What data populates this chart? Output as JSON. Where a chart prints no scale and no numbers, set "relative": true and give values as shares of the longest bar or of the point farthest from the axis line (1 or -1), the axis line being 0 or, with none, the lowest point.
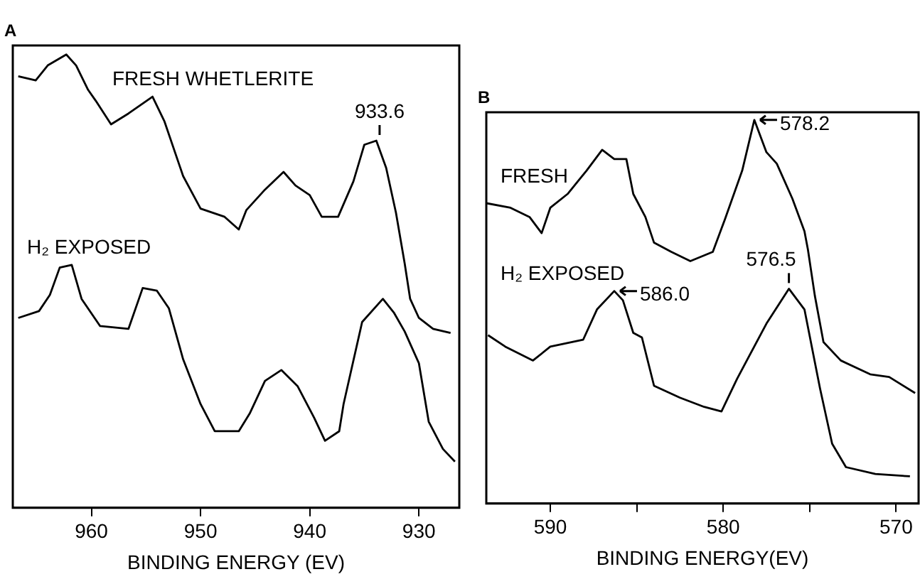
{
  "chart_data": [
    {
      "type": "line",
      "title": "A",
      "xlabel": "BINDING ENERGY (EV)",
      "xlim": [
        967.2,
        926.3
      ],
      "xticks": [
        960,
        950,
        940,
        930
      ],
      "relative": true,
      "grid": false,
      "marker": "none",
      "line_style": "solid",
      "series": [
        {
          "name": "FRESH WHETLERITE",
          "color": "#000000",
          "x": [
            966.7,
            965.1,
            964.0,
            962.3,
            961.4,
            960.3,
            959.6,
            958.2,
            956.6,
            954.4,
            953.3,
            951.6,
            950.0,
            947.8,
            946.5,
            945.8,
            944.1,
            942.4,
            941.3,
            940.0,
            938.9,
            937.4,
            936.0,
            935.0,
            933.9,
            933.0,
            932.1,
            931.3,
            930.8,
            930.0,
            928.7,
            927.1
          ],
          "values": [
            0.952,
            0.943,
            0.976,
            1.0,
            0.976,
            0.922,
            0.898,
            0.846,
            0.87,
            0.907,
            0.852,
            0.732,
            0.66,
            0.642,
            0.614,
            0.657,
            0.702,
            0.741,
            0.711,
            0.69,
            0.642,
            0.642,
            0.72,
            0.801,
            0.81,
            0.75,
            0.651,
            0.539,
            0.461,
            0.419,
            0.395,
            0.386
          ]
        },
        {
          "name": "H₂ EXPOSED",
          "color": "#000000",
          "x": [
            966.7,
            964.8,
            963.8,
            962.9,
            961.8,
            960.9,
            959.2,
            956.6,
            955.3,
            954.0,
            952.9,
            951.6,
            950.0,
            948.7,
            946.5,
            945.5,
            944.1,
            942.6,
            941.1,
            939.6,
            938.6,
            937.3,
            936.9,
            935.2,
            933.3,
            932.3,
            931.3,
            930.0,
            929.1,
            927.8,
            926.7
          ],
          "values": [
            0.419,
            0.434,
            0.47,
            0.53,
            0.536,
            0.461,
            0.401,
            0.395,
            0.485,
            0.479,
            0.44,
            0.328,
            0.229,
            0.169,
            0.169,
            0.208,
            0.28,
            0.304,
            0.268,
            0.199,
            0.148,
            0.169,
            0.229,
            0.41,
            0.461,
            0.431,
            0.389,
            0.319,
            0.19,
            0.13,
            0.102
          ]
        }
      ],
      "annotations": [
        {
          "text": "933.6",
          "x": 933.6,
          "y": 0.81
        }
      ]
    },
    {
      "type": "line",
      "title": "B",
      "xlabel": "BINDING ENERGY(EV)",
      "xlim": [
        593.7,
        568.7
      ],
      "xticks": [
        590,
        {
          "value": 585,
          "label": null
        },
        580,
        {
          "value": 575,
          "label": null
        },
        570
      ],
      "relative": true,
      "grid": false,
      "marker": "none",
      "line_style": "solid",
      "series": [
        {
          "name": "FRESH",
          "color": "#000000",
          "x": [
            593.7,
            592.3,
            591.2,
            590.5,
            590.0,
            589.0,
            587.9,
            587.0,
            586.3,
            585.6,
            585.2,
            584.5,
            584.0,
            583.0,
            581.9,
            580.6,
            579.9,
            578.9,
            578.2,
            577.5,
            576.9,
            576.0,
            575.3,
            575.1,
            574.7,
            574.2,
            573.2,
            571.5,
            570.4,
            568.9
          ],
          "values": [
            0.783,
            0.771,
            0.747,
            0.705,
            0.771,
            0.807,
            0.868,
            0.922,
            0.898,
            0.898,
            0.807,
            0.747,
            0.68,
            0.656,
            0.632,
            0.656,
            0.741,
            0.868,
            1.0,
            0.916,
            0.886,
            0.795,
            0.71,
            0.662,
            0.542,
            0.421,
            0.373,
            0.337,
            0.33,
            0.288
          ]
        },
        {
          "name": "H₂ EXPOSED",
          "color": "#000000",
          "x": [
            593.6,
            592.6,
            591.0,
            590.0,
            588.1,
            587.3,
            586.3,
            585.8,
            585.2,
            584.7,
            584.0,
            582.5,
            581.1,
            580.1,
            579.2,
            577.5,
            576.2,
            575.3,
            574.4,
            573.7,
            572.9,
            571.2,
            569.2
          ],
          "values": [
            0.439,
            0.409,
            0.373,
            0.409,
            0.427,
            0.506,
            0.554,
            0.53,
            0.445,
            0.433,
            0.307,
            0.276,
            0.252,
            0.24,
            0.325,
            0.469,
            0.56,
            0.506,
            0.3,
            0.156,
            0.095,
            0.077,
            0.071
          ]
        }
      ],
      "annotations": [
        {
          "text": "578.2",
          "x": 578.2,
          "y": 1.0
        },
        {
          "text": "576.5",
          "x": 576.2,
          "y": 0.56
        },
        {
          "text": "586.0",
          "x": 586.3,
          "y": 0.554
        }
      ]
    }
  ]
}
